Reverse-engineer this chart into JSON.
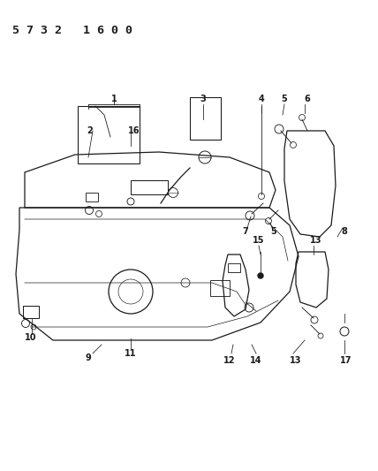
{
  "title": "5732  1600",
  "bg_color": "#ffffff",
  "line_color": "#1a1a1a",
  "title_fontsize": 9,
  "label_fontsize": 7,
  "fig_width": 4.28,
  "fig_height": 5.33,
  "dpi": 100
}
